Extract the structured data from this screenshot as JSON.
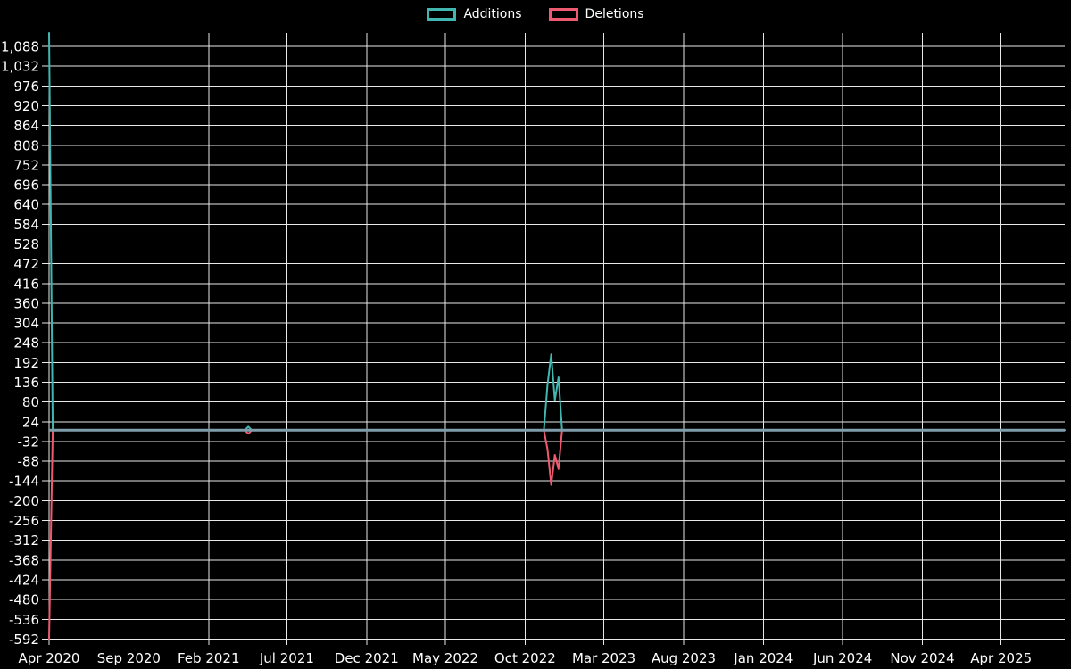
{
  "legend": {
    "items": [
      {
        "label": "Additions"
      },
      {
        "label": "Deletions"
      }
    ]
  },
  "chart_data": {
    "type": "line",
    "title": "",
    "legend_position": "top",
    "background_color": "#000000",
    "colors": {
      "grid": "#e8e8e8",
      "text": "#ffffff"
    },
    "baseline": {
      "value": 0,
      "color": "#7f9dab"
    },
    "x_axis": {
      "start": "2020-04-01",
      "end": "2025-08-01",
      "ticks": [
        {
          "label": "Apr 2020",
          "date": "2020-04-01"
        },
        {
          "label": "Sep 2020",
          "date": "2020-09-01"
        },
        {
          "label": "Feb 2021",
          "date": "2021-02-01"
        },
        {
          "label": "Jul 2021",
          "date": "2021-07-01"
        },
        {
          "label": "Dec 2021",
          "date": "2021-12-01"
        },
        {
          "label": "May 2022",
          "date": "2022-05-01"
        },
        {
          "label": "Oct 2022",
          "date": "2022-10-01"
        },
        {
          "label": "Mar 2023",
          "date": "2023-03-01"
        },
        {
          "label": "Aug 2023",
          "date": "2023-08-01"
        },
        {
          "label": "Jan 2024",
          "date": "2024-01-01"
        },
        {
          "label": "Jun 2024",
          "date": "2024-06-01"
        },
        {
          "label": "Nov 2024",
          "date": "2024-11-01"
        },
        {
          "label": "Apr 2025",
          "date": "2025-04-01"
        }
      ]
    },
    "y_axis": {
      "tick_min": -592,
      "tick_max": 1088,
      "tick_step": 56,
      "plot_max": 1126
    },
    "series": [
      {
        "name": "Additions",
        "color": "#42b7b1",
        "points": [
          [
            "2020-04-01",
            1126
          ],
          [
            "2020-04-08",
            0
          ],
          [
            "2021-04-11",
            0
          ],
          [
            "2021-04-18",
            10
          ],
          [
            "2021-04-25",
            0
          ],
          [
            "2022-11-06",
            0
          ],
          [
            "2022-11-13",
            130
          ],
          [
            "2022-11-20",
            215
          ],
          [
            "2022-11-27",
            85
          ],
          [
            "2022-12-04",
            150
          ],
          [
            "2022-12-11",
            0
          ],
          [
            "2025-08-01",
            0
          ]
        ]
      },
      {
        "name": "Deletions",
        "color": "#ee5a70",
        "points": [
          [
            "2020-04-01",
            -592
          ],
          [
            "2020-04-08",
            0
          ],
          [
            "2021-04-11",
            0
          ],
          [
            "2021-04-18",
            -10
          ],
          [
            "2021-04-25",
            0
          ],
          [
            "2022-11-06",
            0
          ],
          [
            "2022-11-13",
            -55
          ],
          [
            "2022-11-20",
            -155
          ],
          [
            "2022-11-27",
            -70
          ],
          [
            "2022-12-04",
            -110
          ],
          [
            "2022-12-11",
            0
          ],
          [
            "2025-08-01",
            0
          ]
        ]
      }
    ]
  }
}
